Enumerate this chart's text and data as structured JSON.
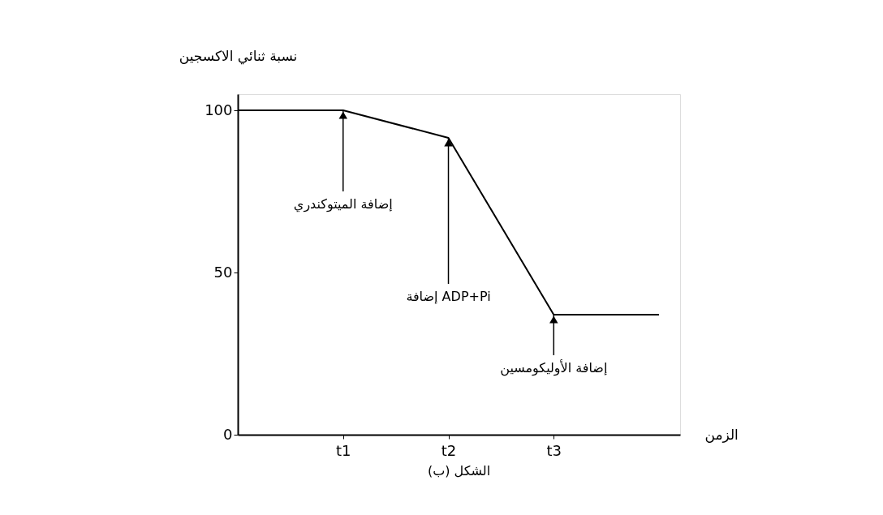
{
  "chart_data": {
    "type": "line",
    "title": "الشكل (ب)",
    "xlabel": "الزمن",
    "ylabel": "نسبة ثنائي الاكسجين",
    "categories": [
      null,
      "t1",
      "t2",
      "t3",
      null
    ],
    "series": [
      {
        "color": "#000000",
        "values": [
          100,
          100,
          91.5,
          37,
          37
        ]
      }
    ],
    "ylim": [
      0,
      105
    ],
    "yticks": [
      0,
      50,
      100
    ],
    "grid": false,
    "marker": "none",
    "line_style": "solid",
    "annotations": [
      {
        "text": "إضافة الميتوكندري",
        "x": "t1",
        "y": 100
      },
      {
        "text": "إضافة ADP+Pi",
        "x": "t2",
        "y": 91.5
      },
      {
        "text": "إضافة الأوليكومسين",
        "x": "t3",
        "y": 37
      }
    ]
  }
}
